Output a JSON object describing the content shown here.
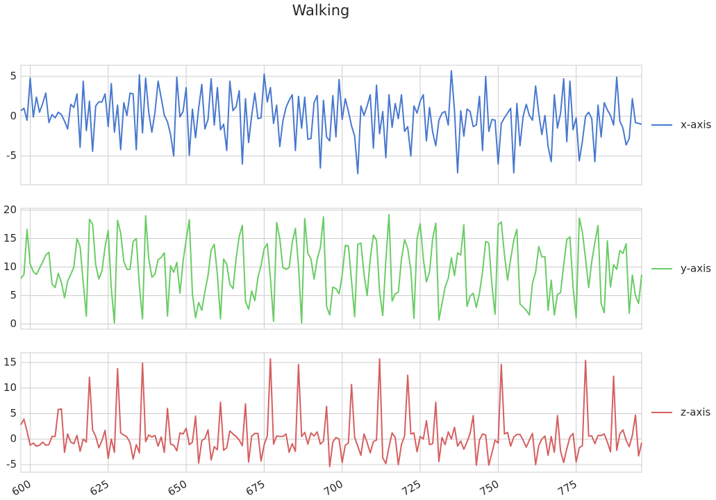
{
  "chart_data": {
    "type": "line",
    "title": "Walking",
    "grid": true,
    "x": [
      597,
      598,
      599,
      600,
      601,
      602,
      603,
      604,
      605,
      606,
      607,
      608,
      609,
      610,
      611,
      612,
      613,
      614,
      615,
      616,
      617,
      618,
      619,
      620,
      621,
      622,
      623,
      624,
      625,
      626,
      627,
      628,
      629,
      630,
      631,
      632,
      633,
      634,
      635,
      636,
      637,
      638,
      639,
      640,
      641,
      642,
      643,
      644,
      645,
      646,
      647,
      648,
      649,
      650,
      651,
      652,
      653,
      654,
      655,
      656,
      657,
      658,
      659,
      660,
      661,
      662,
      663,
      664,
      665,
      666,
      667,
      668,
      669,
      670,
      671,
      672,
      673,
      674,
      675,
      676,
      677,
      678,
      679,
      680,
      681,
      682,
      683,
      684,
      685,
      686,
      687,
      688,
      689,
      690,
      691,
      692,
      693,
      694,
      695,
      696,
      697,
      698,
      699,
      700,
      701,
      702,
      703,
      704,
      705,
      706,
      707,
      708,
      709,
      710,
      711,
      712,
      713,
      714,
      715,
      716,
      717,
      718,
      719,
      720,
      721,
      722,
      723,
      724,
      725,
      726,
      727,
      728,
      729,
      730,
      731,
      732,
      733,
      734,
      735,
      736,
      737,
      738,
      739,
      740,
      741,
      742,
      743,
      744,
      745,
      746,
      747,
      748,
      749,
      750,
      751,
      752,
      753,
      754,
      755,
      756,
      757,
      758,
      759,
      760,
      761,
      762,
      763,
      764,
      765,
      766,
      767,
      768,
      769,
      770,
      771,
      772,
      773,
      774,
      775,
      776,
      777,
      778,
      779,
      780,
      781,
      782,
      783,
      784,
      785,
      786,
      787,
      788,
      789,
      790,
      791,
      792,
      793,
      794,
      795,
      796
    ],
    "xlim": [
      597,
      796
    ],
    "xticks": [
      600,
      625,
      650,
      675,
      700,
      725,
      750,
      775
    ],
    "panels": [
      {
        "ylim": [
          -8.6,
          6.4
        ],
        "yticks": [
          -5,
          0,
          5
        ],
        "series": [
          {
            "name": "x-axis",
            "color": "#4878cf",
            "values": [
              0.7,
              1.0,
              -0.5,
              4.8,
              -0.1,
              2.4,
              0.5,
              1.6,
              2.9,
              -0.8,
              0.2,
              -0.2,
              0.5,
              0.2,
              -0.6,
              -1.6,
              1.5,
              1.1,
              2.8,
              -3.9,
              4.4,
              -1.8,
              1.9,
              -4.4,
              1.3,
              1.8,
              1.8,
              2.8,
              -1.3,
              4.1,
              -2.0,
              1.4,
              -4.2,
              1.7,
              0.1,
              2.9,
              2.8,
              -4.2,
              5.2,
              -2.1,
              4.8,
              0.5,
              -2.0,
              0.5,
              4.4,
              2.3,
              0.1,
              -0.7,
              -2.3,
              -5.0,
              4.9,
              -0.1,
              0.6,
              3.6,
              -4.9,
              0.9,
              -2.7,
              1.0,
              4.0,
              -1.6,
              -0.4,
              4.7,
              -1.1,
              3.6,
              -1.7,
              -1.0,
              -4.3,
              4.4,
              0.7,
              1.2,
              3.2,
              -6.0,
              2.2,
              -3.3,
              0.1,
              2.9,
              -0.3,
              -0.2,
              5.3,
              1.8,
              3.6,
              -0.9,
              1.4,
              -3.8,
              -0.6,
              1.1,
              2.0,
              2.7,
              -4.3,
              2.5,
              -1.5,
              2.4,
              -2.9,
              -2.8,
              1.7,
              2.6,
              -6.5,
              2.0,
              -2.6,
              -3.1,
              2.6,
              -2.6,
              4.6,
              -0.4,
              2.2,
              0.6,
              -1.2,
              -2.5,
              -7.2,
              1.3,
              0.1,
              1.3,
              2.7,
              -4.0,
              3.9,
              -2.2,
              0.6,
              -5.2,
              2.7,
              -1.4,
              1.6,
              -0.3,
              2.7,
              -1.9,
              -1.3,
              -5.0,
              1.3,
              0.4,
              1.9,
              2.7,
              -3.1,
              1.1,
              -2.0,
              -3.7,
              -0.5,
              0.4,
              0.6,
              -1.1,
              5.7,
              0.7,
              -7.1,
              0.7,
              -2.5,
              0.9,
              0.6,
              -1.3,
              -1.1,
              2.5,
              -4.3,
              5.0,
              -1.9,
              -0.4,
              -0.5,
              -6.0,
              -0.9,
              -0.2,
              0.4,
              1.0,
              -7.1,
              1.6,
              -3.7,
              0.0,
              1.5,
              0.1,
              -0.5,
              3.8,
              0.4,
              -2.3,
              0.1,
              -3.8,
              -5.7,
              2.7,
              -1.5,
              0.4,
              4.7,
              -3.2,
              4.4,
              -1.7,
              -0.2,
              -5.6,
              -3.1,
              0.0,
              0.5,
              -0.3,
              -5.7,
              1.4,
              -2.6,
              1.7,
              0.8,
              0.1,
              -1.1,
              4.9,
              -0.6,
              -1.5,
              -3.6,
              -2.8,
              2.2,
              -0.8,
              -0.9,
              -1.0
            ]
          }
        ]
      },
      {
        "ylim": [
          -0.9,
          20.3
        ],
        "yticks": [
          0,
          5,
          10,
          15,
          20
        ],
        "series": [
          {
            "name": "y-axis",
            "color": "#6acc65",
            "values": [
              8.0,
              8.7,
              16.6,
              10.5,
              9.2,
              8.7,
              9.8,
              10.9,
              12.1,
              12.6,
              7.0,
              6.4,
              8.9,
              7.3,
              4.6,
              7.5,
              8.7,
              10.0,
              15.0,
              13.6,
              7.2,
              1.4,
              18.4,
              17.5,
              10.4,
              7.9,
              9.3,
              13.5,
              16.4,
              6.2,
              0.2,
              18.2,
              16.0,
              11.0,
              9.6,
              9.6,
              14.5,
              15.0,
              6.7,
              0.9,
              19.0,
              11.5,
              8.2,
              8.8,
              11.3,
              11.7,
              12.5,
              1.4,
              10.2,
              9.1,
              10.8,
              5.4,
              11.0,
              14.8,
              18.3,
              5.3,
              1.1,
              3.8,
              2.4,
              5.7,
              8.5,
              13.0,
              14.0,
              8.7,
              0.9,
              11.4,
              10.5,
              7.0,
              6.2,
              11.5,
              15.4,
              17.3,
              4.0,
              2.6,
              5.8,
              4.1,
              8.2,
              10.3,
              13.2,
              14.1,
              8.0,
              0.5,
              17.8,
              15.0,
              9.9,
              9.6,
              9.9,
              14.3,
              16.8,
              10.2,
              0.2,
              18.5,
              12.4,
              11.4,
              7.9,
              11.4,
              13.4,
              18.8,
              3.1,
              1.6,
              6.5,
              6.2,
              5.3,
              8.6,
              13.8,
              13.7,
              7.6,
              1.3,
              14.0,
              14.2,
              8.8,
              5.0,
              11.5,
              15.6,
              14.7,
              5.6,
              1.5,
              11.2,
              19.2,
              4.0,
              5.3,
              5.6,
              11.4,
              14.8,
              13.3,
              9.5,
              1.0,
              15.0,
              17.6,
              11.5,
              7.4,
              9.1,
              15.0,
              17.7,
              0.7,
              3.6,
              6.5,
              8.0,
              11.6,
              8.5,
              12.5,
              12.1,
              17.4,
              3.1,
              4.9,
              5.4,
              2.9,
              5.4,
              9.2,
              14.5,
              14.2,
              6.8,
              1.7,
              17.4,
              17.9,
              12.2,
              7.7,
              11.4,
              14.7,
              16.6,
              3.5,
              3.0,
              2.4,
              1.6,
              7.2,
              9.1,
              13.6,
              11.8,
              11.8,
              2.4,
              7.7,
              1.6,
              5.2,
              5.5,
              10.4,
              14.8,
              15.3,
              6.5,
              1.1,
              18.6,
              16.1,
              11.5,
              6.4,
              11.0,
              14.3,
              17.3,
              3.6,
              2.0,
              14.6,
              6.5,
              10.4,
              9.6,
              12.9,
              12.4,
              14.1,
              1.9,
              8.6,
              5.0,
              3.6,
              8.7
            ]
          }
        ]
      },
      {
        "ylim": [
          -6.5,
          16.9
        ],
        "yticks": [
          -5,
          0,
          5,
          10,
          15
        ],
        "series": [
          {
            "name": "z-axis",
            "color": "#d65f5f",
            "values": [
              2.8,
              3.9,
              1.5,
              -1.2,
              -0.8,
              -1.4,
              -1.2,
              -0.6,
              -1.2,
              -1.1,
              0.5,
              0.5,
              5.8,
              5.9,
              -2.6,
              1.0,
              -0.6,
              -0.9,
              0.7,
              -2.4,
              0.0,
              -0.6,
              12.1,
              1.8,
              0.5,
              -1.7,
              -0.3,
              1.7,
              -3.8,
              0.0,
              -2.6,
              13.8,
              1.2,
              0.8,
              0.4,
              -0.7,
              -3.9,
              -1.1,
              -2.7,
              14.9,
              -0.5,
              0.8,
              0.4,
              0.7,
              -1.4,
              0.4,
              -2.6,
              6.0,
              -1.0,
              -1.2,
              -2.3,
              1.2,
              1.0,
              2.1,
              -1.1,
              -0.6,
              4.5,
              -4.7,
              -0.3,
              0.1,
              1.8,
              -4.1,
              -1.5,
              -2.1,
              7.2,
              -2.2,
              -1.7,
              1.6,
              1.0,
              0.5,
              -0.2,
              -1.3,
              6.9,
              -4.5,
              0.6,
              1.1,
              1.1,
              -4.3,
              -1.1,
              0.6,
              15.7,
              -1.0,
              0.6,
              0.5,
              0.5,
              1.0,
              -2.6,
              -0.9,
              -2.4,
              14.6,
              0.5,
              1.3,
              -1.0,
              1.2,
              0.6,
              1.4,
              -1.0,
              -0.4,
              6.4,
              -5.4,
              -0.6,
              0.3,
              0.0,
              -4.6,
              -1.2,
              -0.8,
              10.7,
              0.3,
              -1.4,
              -3.2,
              1.0,
              -0.7,
              -2.7,
              -0.5,
              -0.2,
              15.7,
              -3.7,
              -4.8,
              -1.6,
              1.2,
              0.3,
              -5.0,
              -1.1,
              0.6,
              12.5,
              1.0,
              1.2,
              -2.5,
              0.5,
              0.0,
              3.6,
              -1.1,
              -0.9,
              7.2,
              -4.4,
              0.3,
              -1.1,
              1.4,
              0.0,
              2.3,
              -1.4,
              -0.4,
              -2.0,
              -0.6,
              1.1,
              4.6,
              -5.1,
              -0.2,
              1.0,
              0.8,
              -5.1,
              -2.7,
              -0.2,
              -0.8,
              14.6,
              1.0,
              1.3,
              -1.4,
              0.4,
              0.9,
              0.9,
              -0.2,
              -1.6,
              -0.2,
              1.1,
              -5.0,
              -1.3,
              0.0,
              0.6,
              -3.2,
              0.5,
              -2.6,
              4.6,
              -2.4,
              -4.6,
              -1.9,
              0.4,
              1.1,
              -4.5,
              -1.7,
              -1.3,
              15.4,
              0.6,
              0.6,
              -0.9,
              0.7,
              0.7,
              1.0,
              -0.6,
              -2.5,
              12.3,
              -2.2,
              1.0,
              1.8,
              -0.2,
              -1.5,
              0.7,
              4.7,
              -3.3,
              -0.7
            ]
          }
        ]
      }
    ]
  }
}
